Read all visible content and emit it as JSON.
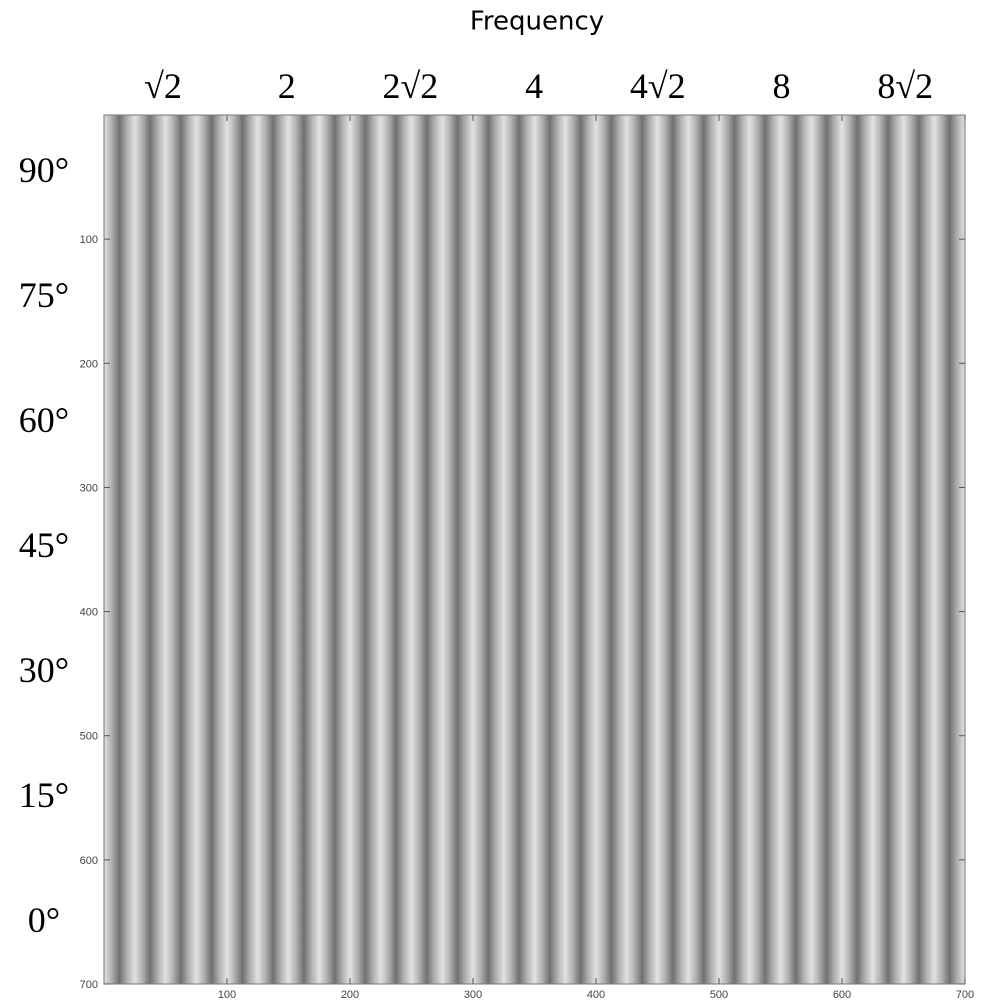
{
  "chart_data": {
    "type": "image",
    "title": "Frequency",
    "column_labels": [
      "√2",
      "2",
      "2√2",
      "4",
      "4√2",
      "8",
      "8√2"
    ],
    "row_labels": [
      "90°",
      "75°",
      "60°",
      "45°",
      "30°",
      "15°",
      "0°"
    ],
    "xlim": [
      0,
      700
    ],
    "ylim": [
      0,
      700
    ],
    "xticks": [
      100,
      200,
      300,
      400,
      500,
      600,
      700
    ],
    "yticks": [
      100,
      200,
      300,
      400,
      500,
      600,
      700
    ],
    "grid": false
  }
}
